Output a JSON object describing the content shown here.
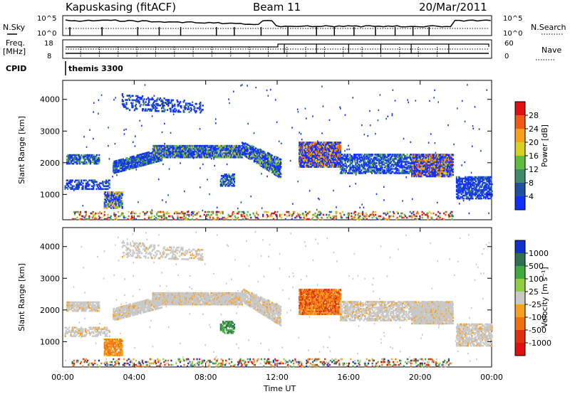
{
  "header": {
    "station": "Kapuskasing (fitACF)",
    "beam": "Beam 11",
    "date": "20/Mar/2011"
  },
  "panels": {
    "nsky_label": "N.Sky",
    "nsky_ticks": [
      "10^5",
      "10^0"
    ],
    "nsearch_label": "N.Search",
    "nsearch_ticks": [
      "10^5",
      "10^0"
    ],
    "freq_label_line1": "Freq.",
    "freq_label_line2": "[MHz]",
    "freq_ticks": [
      "18",
      "8"
    ],
    "nave_label": "Nave",
    "nave_ticks": [
      "60",
      "0"
    ],
    "cpid_label": "CPID",
    "cpid_value": "themis 3300"
  },
  "chart_data": [
    {
      "type": "heatmap",
      "name": "power",
      "ylabel": "Slant Range [km]",
      "yticks": [
        1000,
        2000,
        3000,
        4000
      ],
      "ylim": [
        200,
        4600
      ],
      "colorbar_label": "Power [dB]",
      "colorbar_ticks": [
        "4",
        "8",
        "12",
        "16",
        "20",
        "24",
        "28"
      ],
      "colors": [
        "#1030ff",
        "#2050a0",
        "#3e8a6a",
        "#5ebd3c",
        "#d8d020",
        "#f7a01c",
        "#f05a18",
        "#e01010"
      ]
    },
    {
      "type": "heatmap",
      "name": "velocity",
      "ylabel": "Slant Range [km]",
      "yticks": [
        1000,
        2000,
        3000,
        4000
      ],
      "ylim": [
        200,
        4600
      ],
      "colorbar_label": "Velocity [m s⁻¹]",
      "colorbar_ticks": [
        "1000",
        "500",
        "100",
        "25",
        "-25",
        "-100",
        "-500",
        "-1000"
      ],
      "colors": [
        "#1030d0",
        "#307050",
        "#3eaa3e",
        "#8ed040",
        "#c8c8c8",
        "#f7a020",
        "#f07010",
        "#e03010",
        "#e01010"
      ]
    }
  ],
  "xaxis": {
    "label": "Time UT",
    "ticks": [
      "00:00",
      "04:00",
      "08:00",
      "12:00",
      "16:00",
      "20:00",
      "00:00"
    ]
  }
}
